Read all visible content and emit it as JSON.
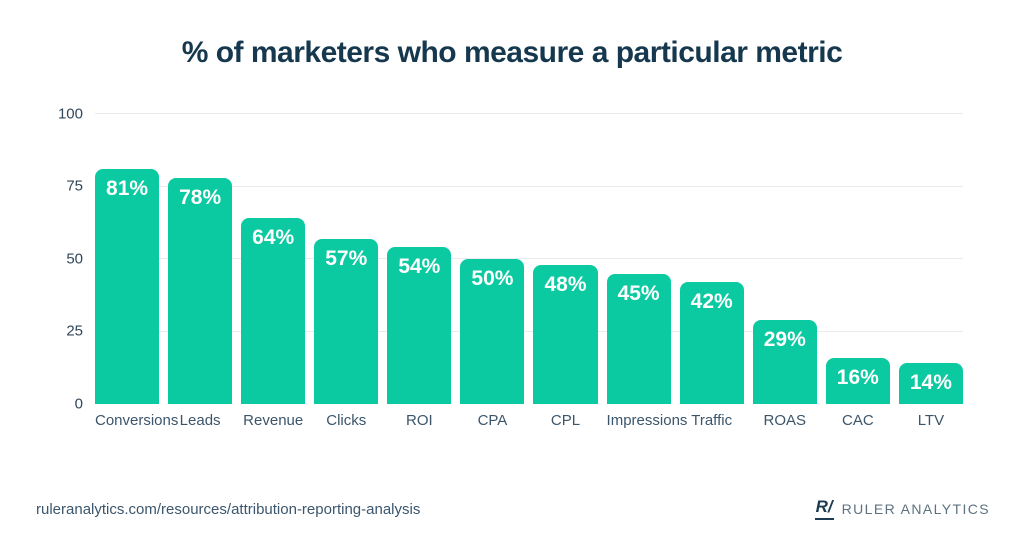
{
  "title": "% of marketers who measure a particular metric",
  "colors": {
    "bar": "#0bc9a0",
    "title": "#16384e",
    "axis_tick": "#31475a",
    "category_label": "#3b556a",
    "gridline": "#e9ebee",
    "bar_value_label": "#ffffff",
    "brand_icon": "#1d3c52",
    "brand_text": "#5d7280"
  },
  "chart_data": {
    "type": "bar",
    "title": "% of marketers who measure a particular metric",
    "categories": [
      "Conversions",
      "Leads",
      "Revenue",
      "Clicks",
      "ROI",
      "CPA",
      "CPL",
      "Impressions",
      "Traffic",
      "ROAS",
      "CAC",
      "LTV"
    ],
    "values": [
      81,
      78,
      64,
      57,
      54,
      50,
      48,
      45,
      42,
      29,
      16,
      14
    ],
    "value_labels": [
      "81%",
      "78%",
      "64%",
      "57%",
      "54%",
      "50%",
      "48%",
      "45%",
      "42%",
      "29%",
      "16%",
      "14%"
    ],
    "xlabel": "",
    "ylabel": "",
    "ylim": [
      0,
      100
    ],
    "yticks": [
      0,
      25,
      50,
      75,
      100
    ],
    "grid": true,
    "legend": false
  },
  "footer": {
    "source_url": "ruleranalytics.com/resources/attribution-reporting-analysis",
    "brand_icon": "R/",
    "brand_name": "RULER ANALYTICS"
  }
}
